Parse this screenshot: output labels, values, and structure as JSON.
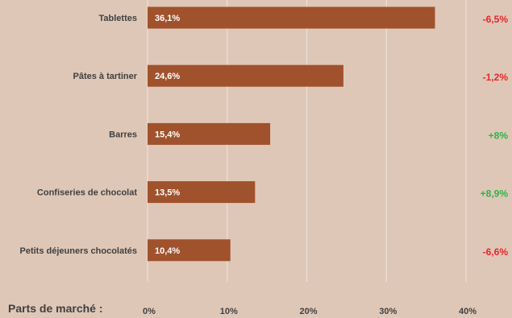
{
  "chart_data": {
    "type": "bar",
    "orientation": "horizontal",
    "xlabel": "Parts de marché :",
    "xlim": [
      0,
      40
    ],
    "grid": true,
    "categories": [
      "Tablettes",
      "Pâtes à tartiner",
      "Barres",
      "Confiseries de chocolat",
      "Petits déjeuners chocolatés"
    ],
    "values": [
      36.1,
      24.6,
      15.4,
      13.5,
      10.4
    ],
    "value_labels": [
      "36,1%",
      "24,6%",
      "15,4%",
      "13,5%",
      "10,4%"
    ],
    "ticks": [
      0,
      10,
      20,
      30,
      40
    ],
    "tick_labels": [
      "0%",
      "10%",
      "20%",
      "30%",
      "40%"
    ],
    "annotations": [
      "-6,5%",
      "-1,2%",
      "+8%",
      "+8,9%",
      "-6,6%"
    ],
    "annotation_colors": [
      "#e8262b",
      "#e8262b",
      "#2eb34a",
      "#2eb34a",
      "#e8262b"
    ],
    "bar_color": "#a0522d",
    "background_color": "#dfc7b7"
  }
}
